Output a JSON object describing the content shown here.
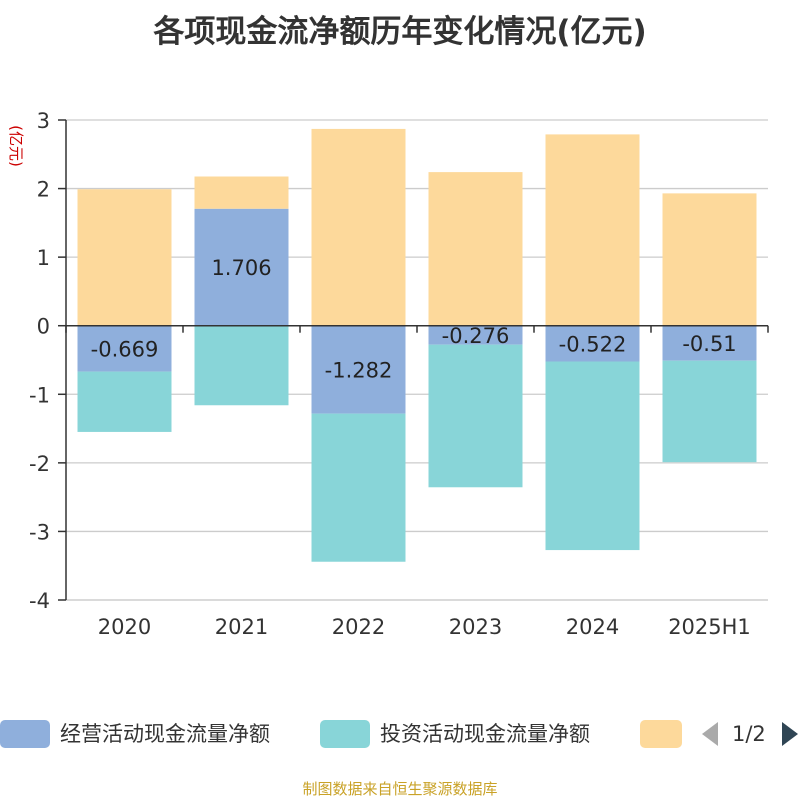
{
  "chart_data": {
    "type": "bar",
    "title": "各项现金流净额历年变化情况(亿元)",
    "ylabel": "(亿元)",
    "categories": [
      "2020",
      "2021",
      "2022",
      "2023",
      "2024",
      "2025H1"
    ],
    "ylim": [
      -4,
      3
    ],
    "yticks": [
      3,
      2,
      1,
      0,
      -1,
      -2,
      -3,
      -4
    ],
    "grid": true,
    "stacked": true,
    "series": [
      {
        "name": "经营活动现金流量净额",
        "color": "#8fafdc",
        "values": [
          -0.669,
          1.706,
          -1.282,
          -0.276,
          -0.522,
          -0.51
        ],
        "labels": [
          "-0.669",
          "1.706",
          "-1.282",
          "-0.276",
          "-0.522",
          "-0.51"
        ]
      },
      {
        "name": "投资活动现金流量净额",
        "color": "#88d5d8",
        "values": [
          -0.88,
          -1.16,
          -2.16,
          -2.08,
          -2.75,
          -1.48
        ]
      },
      {
        "name": "",
        "color": "#fdd99b",
        "values": [
          1.99,
          0.47,
          2.87,
          2.24,
          2.79,
          1.93
        ]
      }
    ],
    "legend_position": "bottom",
    "legend_page": "1/2"
  },
  "source": "制图数据来自恒生聚源数据库"
}
